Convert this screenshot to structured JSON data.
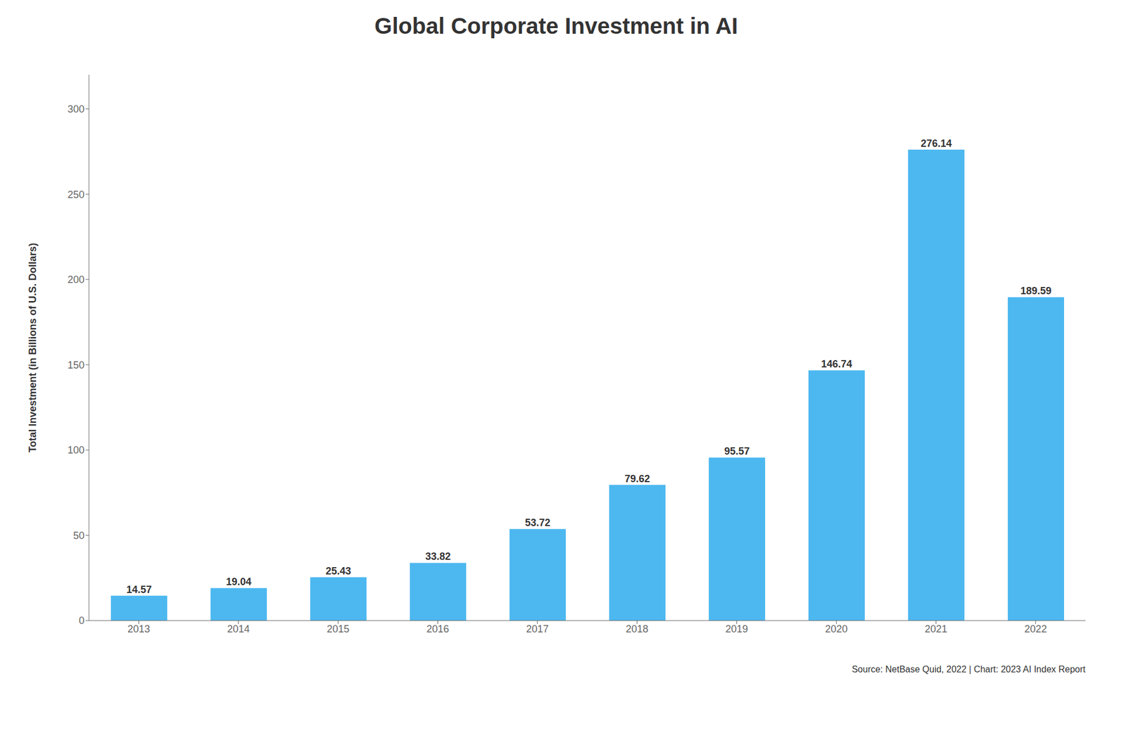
{
  "chart_data": {
    "type": "bar",
    "title": "Global Corporate Investment in AI",
    "categories": [
      "2013",
      "2014",
      "2015",
      "2016",
      "2017",
      "2018",
      "2019",
      "2020",
      "2021",
      "2022"
    ],
    "values": [
      14.57,
      19.04,
      25.43,
      33.82,
      53.72,
      79.62,
      95.57,
      146.74,
      276.14,
      189.59
    ],
    "color": "#4DB8F0",
    "ylabel": "Total Investment (in Billions of U.S. Dollars)",
    "ylim": [
      0,
      320
    ],
    "yticks": [
      0,
      50,
      100,
      150,
      200,
      250,
      300
    ],
    "grid": false,
    "data_labels": true,
    "annotations": [
      "Source: NetBase Quid, 2022 | Chart: 2023 AI Index Report"
    ]
  }
}
